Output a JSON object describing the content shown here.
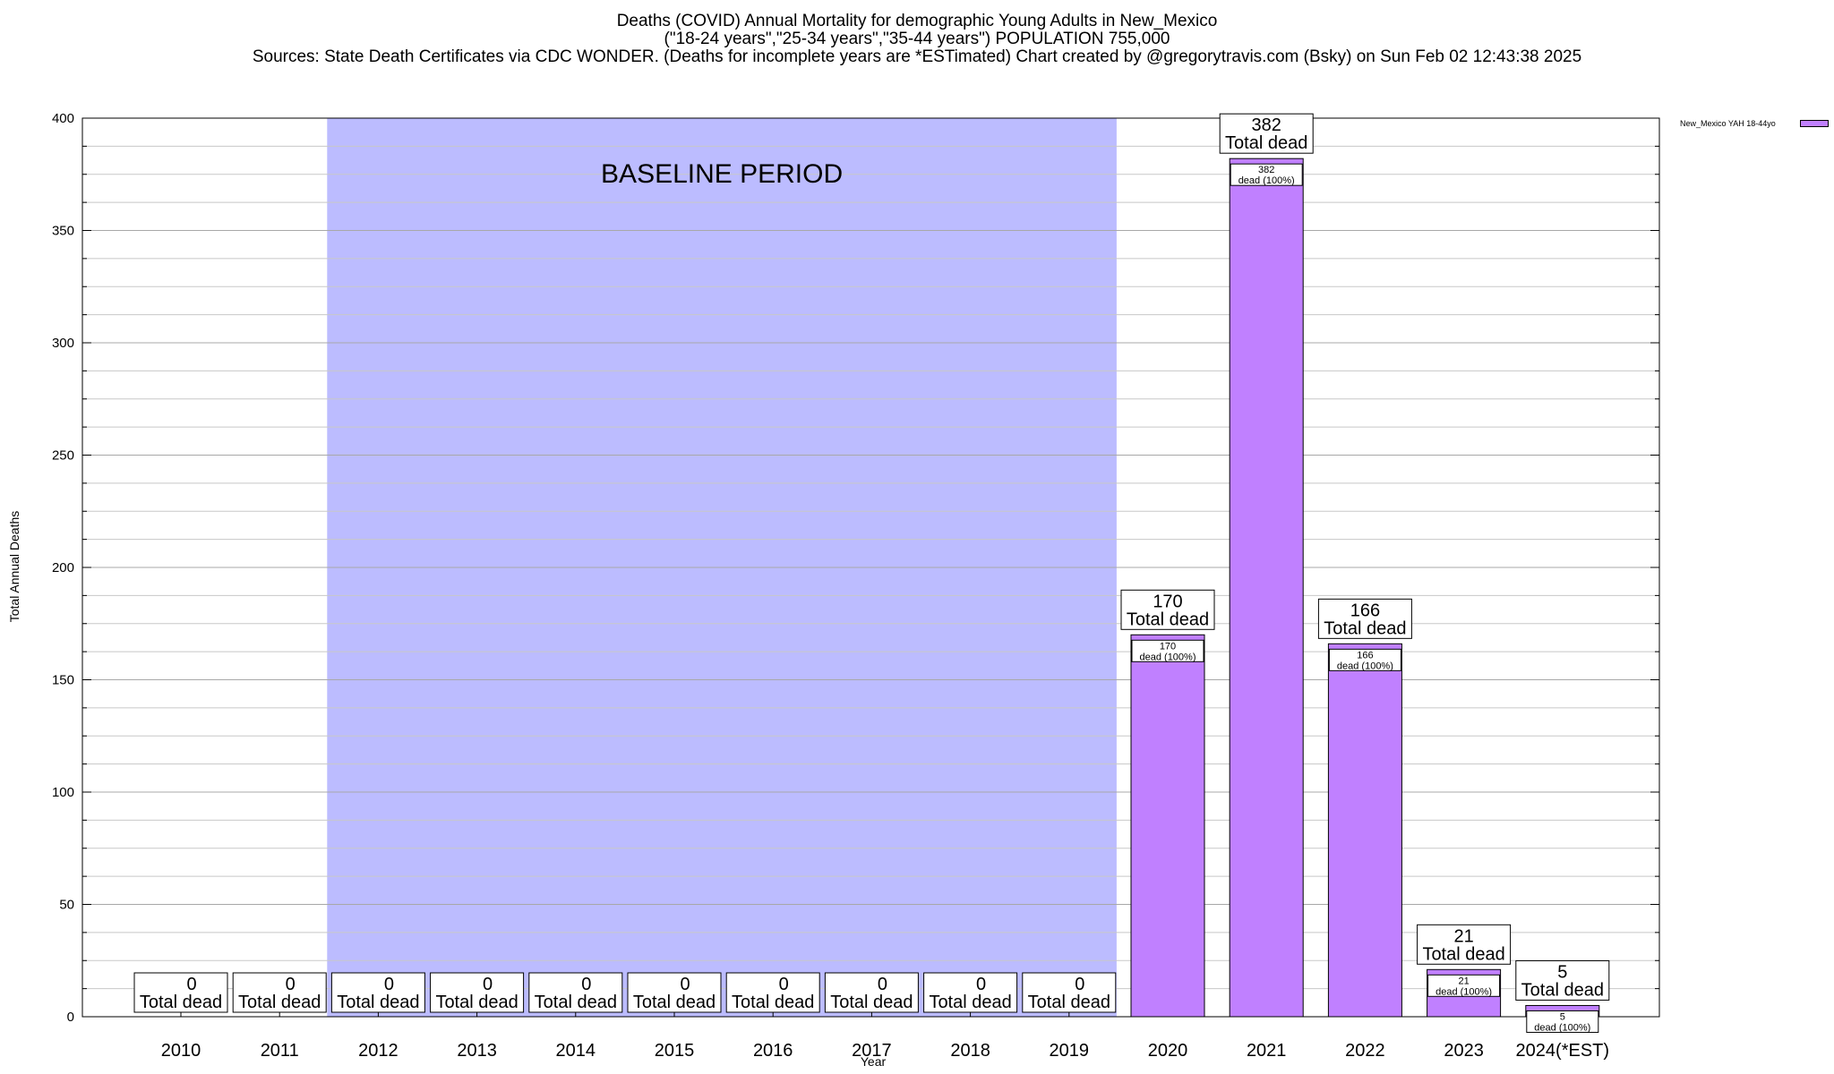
{
  "titles": {
    "line1": "Deaths (COVID) Annual Mortality for demographic Young Adults in New_Mexico",
    "line2": "(\"18-24 years\",\"25-34 years\",\"35-44 years\") POPULATION 755,000",
    "line3": "Sources: State Death Certificates via CDC WONDER. (Deaths for incomplete years are *ESTimated)                Chart created by @gregorytravis.com (Bsky) on Sun Feb 02 12:43:38 2025"
  },
  "colors": {
    "bar": "#c080ff",
    "baseline_band": "#bcbcff",
    "grid": "#c8c8c8"
  },
  "chart_data": {
    "type": "bar",
    "categories": [
      "2010",
      "2011",
      "2012",
      "2013",
      "2014",
      "2015",
      "2016",
      "2017",
      "2018",
      "2019",
      "2020",
      "2021",
      "2022",
      "2023",
      "2024(*EST)"
    ],
    "series": [
      {
        "name": "New_Mexico YAH 18-44yo",
        "values": [
          0,
          0,
          0,
          0,
          0,
          0,
          0,
          0,
          0,
          0,
          170,
          382,
          166,
          21,
          5
        ]
      }
    ],
    "bar_labels": [
      "0",
      "0",
      "0",
      "0",
      "0",
      "0",
      "0",
      "0",
      "0",
      "0",
      "170",
      "382",
      "166",
      "21",
      "5"
    ],
    "total_label": "Total dead",
    "inner_label_line2": "dead (100%)",
    "xlabel": "Year",
    "ylabel": "Total Annual Deaths",
    "ylim": [
      0,
      400
    ],
    "yticks": [
      0,
      50,
      100,
      150,
      200,
      250,
      300,
      350,
      400
    ],
    "baseline_band": {
      "from": "2012",
      "to": "2019",
      "label": "BASELINE PERIOD"
    },
    "legend_position": "top-right",
    "grid": true
  }
}
